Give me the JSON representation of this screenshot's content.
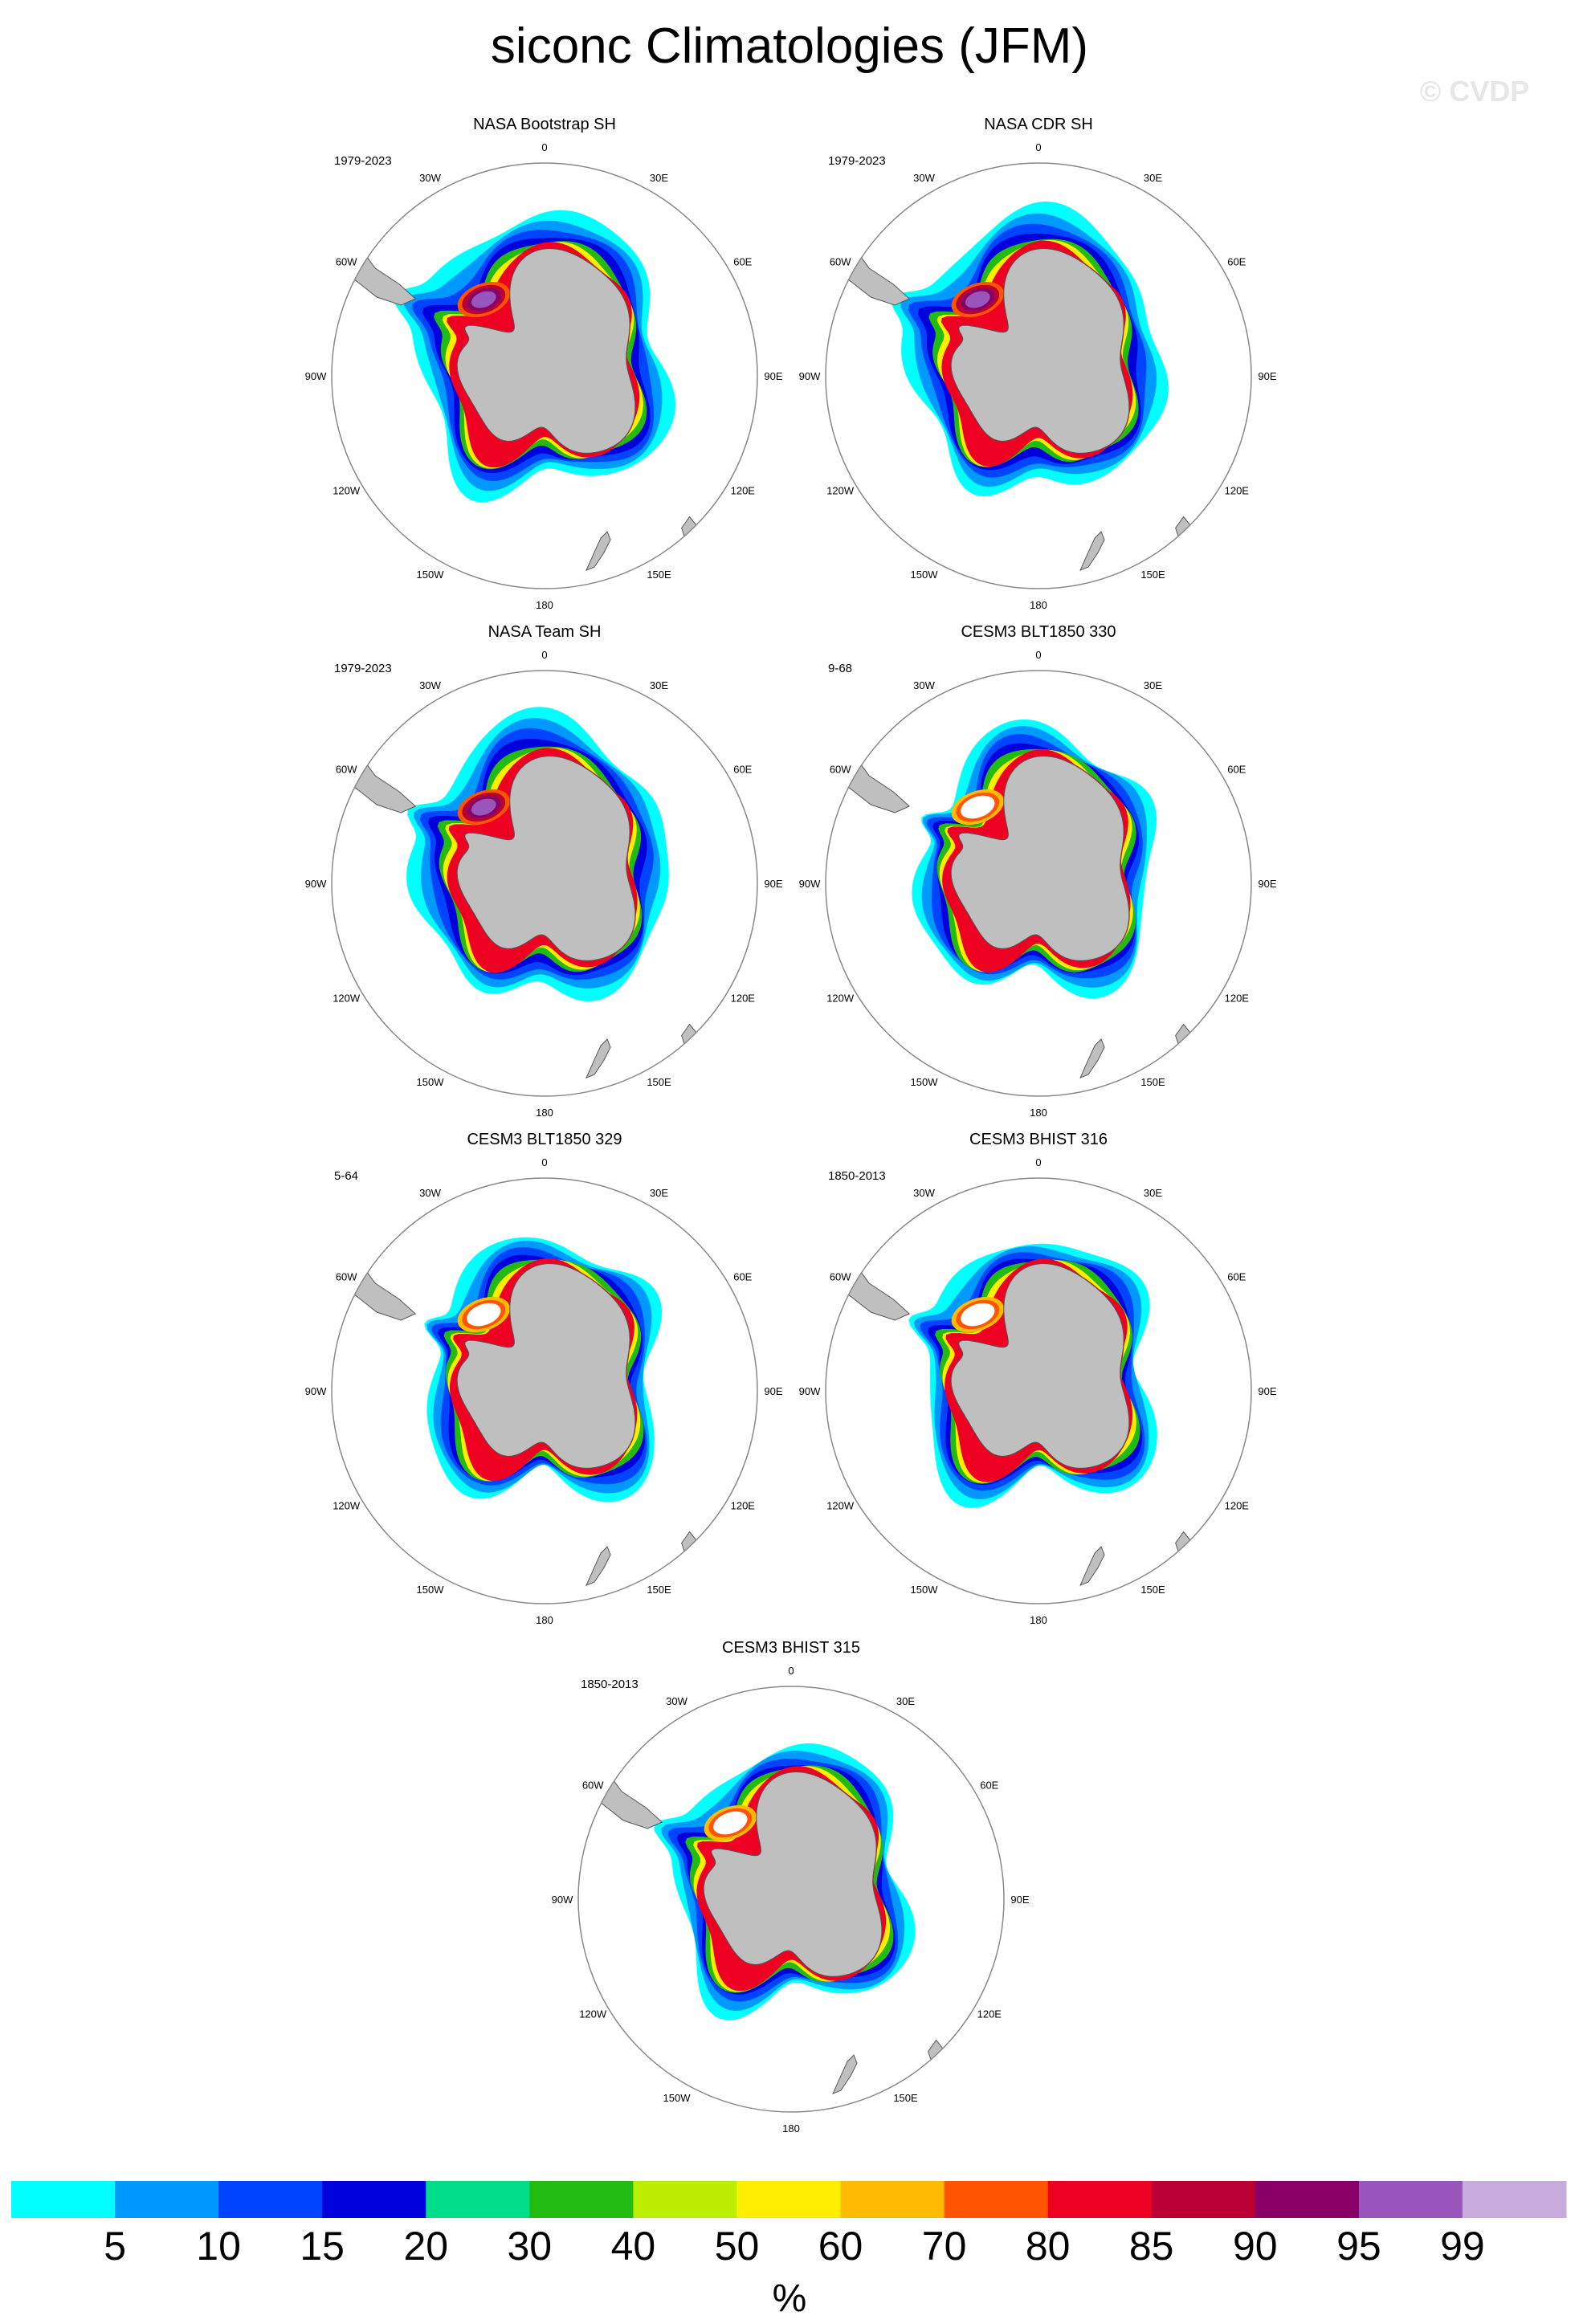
{
  "title": "siconc Climatologies (JFM)",
  "watermark": "© CVDP",
  "units_label": "%",
  "colors": {
    "land": "#bfbfbf",
    "coast": "#555555",
    "circle": "#888888"
  },
  "lon_labels": [
    "0",
    "30E",
    "60E",
    "90E",
    "120E",
    "150E",
    "180",
    "150W",
    "120W",
    "90W",
    "60W",
    "30W"
  ],
  "chart_data": {
    "type": "heatmap",
    "projection": "south-polar-stereographic",
    "variable": "siconc",
    "season": "JFM",
    "colorbar": {
      "levels": [
        "5",
        "10",
        "15",
        "20",
        "30",
        "40",
        "50",
        "60",
        "70",
        "80",
        "85",
        "90",
        "95",
        "99"
      ],
      "colors": [
        "#00ffff",
        "#0099ff",
        "#0044ff",
        "#0000dd",
        "#00dd88",
        "#22bb11",
        "#bbee00",
        "#ffee00",
        "#ffbb00",
        "#ff5500",
        "#ee0022",
        "#bb0033",
        "#880066",
        "#9955bb",
        "#c8aadd"
      ]
    },
    "panels": [
      {
        "title": "NASA Bootstrap SH",
        "period": "1979-2023"
      },
      {
        "title": "NASA CDR SH",
        "period": "1979-2023"
      },
      {
        "title": "NASA Team SH",
        "period": "1979-2023"
      },
      {
        "title": "CESM3 BLT1850 330",
        "period": "9-68"
      },
      {
        "title": "CESM3 BLT1850 329",
        "period": "5-64"
      },
      {
        "title": "CESM3 BHIST 316",
        "period": "1850-2013"
      },
      {
        "title": "CESM3 BHIST 315",
        "period": "1850-2013"
      }
    ]
  }
}
